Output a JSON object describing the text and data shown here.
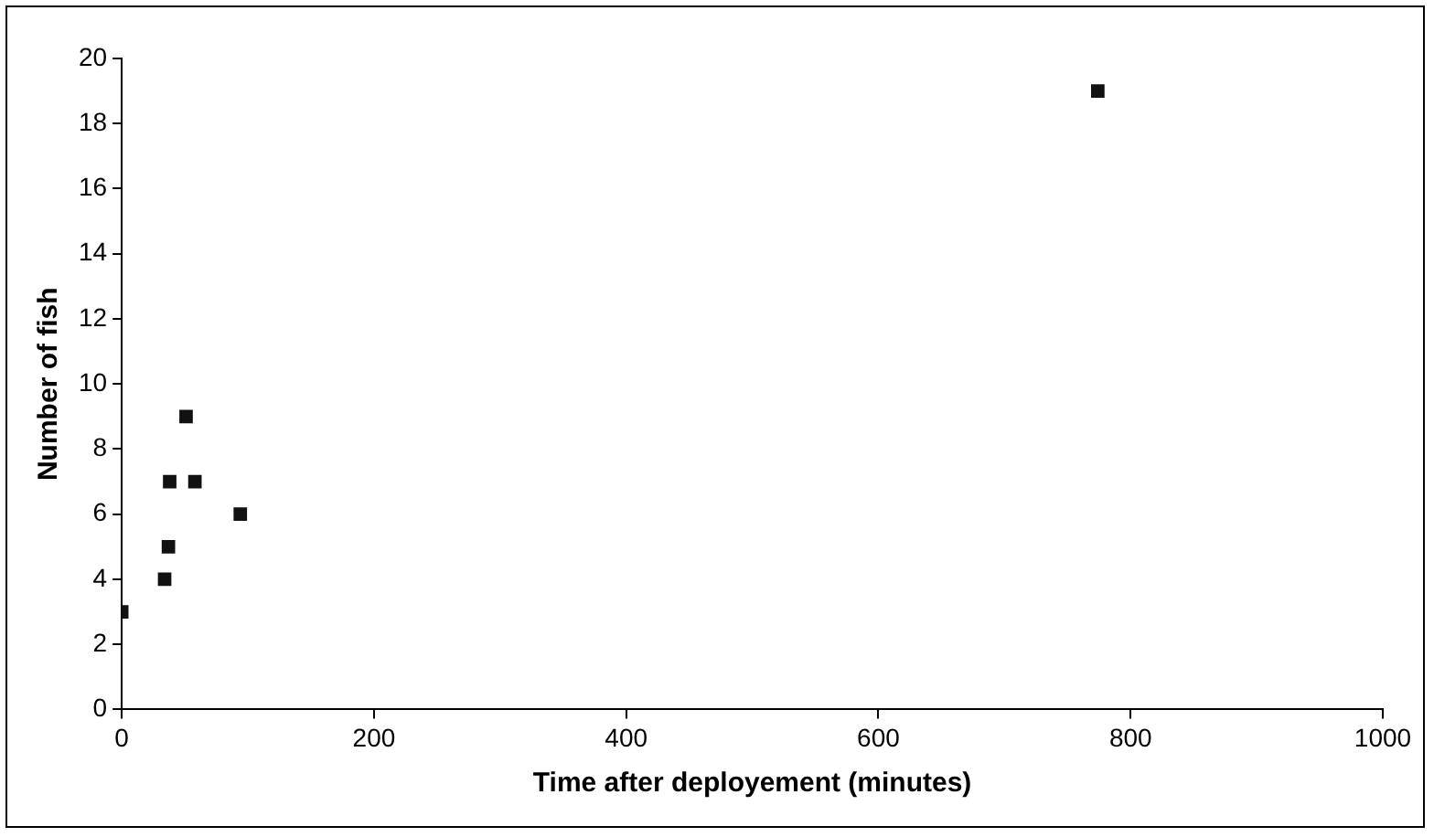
{
  "chart_data": {
    "type": "scatter",
    "xlabel": "Time after deployement (minutes)",
    "ylabel": "Number of fish",
    "x": [
      0,
      34,
      37,
      38,
      51,
      58,
      94,
      774
    ],
    "series": [
      {
        "color": "#111111",
        "values": [
          3,
          4,
          5,
          7,
          9,
          7,
          6,
          19
        ]
      }
    ],
    "xlim": [
      0,
      1000
    ],
    "xticks": [
      0,
      200,
      400,
      600,
      800,
      1000
    ],
    "ylim": [
      0,
      20
    ],
    "yticks": [
      0,
      2,
      4,
      6,
      8,
      10,
      12,
      14,
      16,
      18,
      20
    ],
    "grid": false,
    "legend": false,
    "marker": "square"
  }
}
